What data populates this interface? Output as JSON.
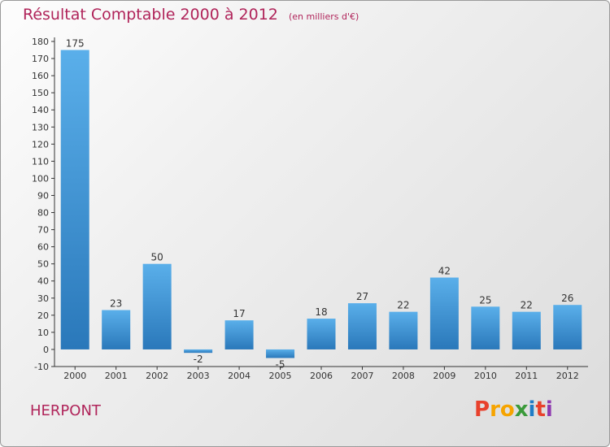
{
  "header": {
    "title": "Résultat Comptable 2000 à 2012",
    "unit_note": "(en milliers d'€)"
  },
  "footer": {
    "commune": "HERPONT",
    "logo_letters": [
      {
        "ch": "P",
        "color": "#e8412c"
      },
      {
        "ch": "r",
        "color": "#f6a400"
      },
      {
        "ch": "o",
        "color": "#f6a400"
      },
      {
        "ch": "x",
        "color": "#3a9a3a"
      },
      {
        "ch": "i",
        "color": "#1f7cc6"
      },
      {
        "ch": "t",
        "color": "#e8412c"
      },
      {
        "ch": "i",
        "color": "#8e3bb0"
      }
    ]
  },
  "colors": {
    "bar_top": "#5aafea",
    "bar_bottom": "#2a78ba",
    "title": "#b0245a",
    "axis": "#333333"
  },
  "chart_data": {
    "type": "bar",
    "title": "Résultat Comptable 2000 à 2012",
    "subtitle": "(en milliers d'€)",
    "categories": [
      "2000",
      "2001",
      "2002",
      "2003",
      "2004",
      "2005",
      "2006",
      "2007",
      "2008",
      "2009",
      "2010",
      "2011",
      "2012"
    ],
    "values": [
      175,
      23,
      50,
      -2,
      17,
      -5,
      18,
      27,
      22,
      42,
      25,
      22,
      26
    ],
    "ylim": [
      -10,
      180
    ],
    "yticks": [
      -10,
      0,
      10,
      20,
      30,
      40,
      50,
      60,
      70,
      80,
      90,
      100,
      110,
      120,
      130,
      140,
      150,
      160,
      170,
      180
    ],
    "xlabel": "",
    "ylabel": "",
    "grid": false
  }
}
